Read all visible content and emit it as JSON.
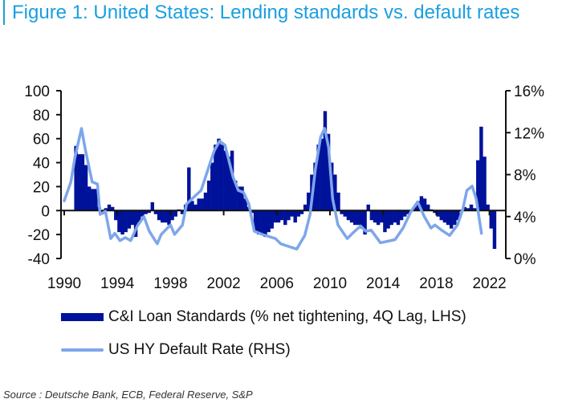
{
  "title": "Figure 1: United States: Lending standards vs. default rates",
  "source": "Source : Deutsche Bank, ECB, Federal Reserve, S&P",
  "colors": {
    "title": "#1a9fe0",
    "bars": "#00129a",
    "line": "#7ea6ea"
  },
  "chart_data": {
    "type": "bar+line",
    "title": "Figure 1: United States: Lending standards vs. default rates",
    "x_ticks": [
      "1990",
      "1994",
      "1998",
      "2002",
      "2006",
      "2010",
      "2014",
      "2018",
      "2022"
    ],
    "x_tick_values": [
      1990,
      1994,
      1998,
      2002,
      2006,
      2010,
      2014,
      2018,
      2022
    ],
    "xlim": [
      1990,
      2023.5
    ],
    "left_axis": {
      "ylim": [
        -40,
        100
      ],
      "ticks": [
        100,
        80,
        60,
        40,
        20,
        0,
        -20,
        -40
      ],
      "tick_labels": [
        "100",
        "80",
        "60",
        "40",
        "20",
        "0",
        "-20",
        "-40"
      ]
    },
    "right_axis": {
      "ylim": [
        0,
        16
      ],
      "ticks": [
        16,
        12,
        8,
        4,
        0
      ],
      "tick_labels": [
        "16%",
        "12%",
        "8%",
        "4%",
        "0%"
      ]
    },
    "legend": [
      "C&I Loan Standards (% net tightening, 4Q Lag, LHS)",
      "US HY Default Rate (RHS)"
    ],
    "legend_position": "bottom",
    "series": [
      {
        "name": "C&I Loan Standards (% net tightening, 4Q Lag, LHS)",
        "type": "bar",
        "axis": "left",
        "x_start": 1990.75,
        "step": 0.25,
        "values": [
          54,
          47,
          47,
          38,
          20,
          18,
          18,
          3,
          -3,
          2,
          5,
          3,
          -8,
          -18,
          -20,
          -18,
          -15,
          -12,
          -22,
          -10,
          -5,
          -3,
          -2,
          7,
          -3,
          -8,
          -10,
          -10,
          -12,
          -8,
          -5,
          1,
          -3,
          5,
          36,
          8,
          5,
          10,
          10,
          15,
          25,
          40,
          55,
          60,
          55,
          50,
          45,
          50,
          25,
          20,
          20,
          10,
          3,
          -2,
          -18,
          -20,
          -20,
          -22,
          -18,
          -15,
          -10,
          -10,
          -8,
          -12,
          -8,
          -5,
          -10,
          -5,
          -3,
          5,
          15,
          30,
          40,
          55,
          60,
          83,
          64,
          40,
          30,
          15,
          -3,
          -5,
          -8,
          -10,
          -12,
          -12,
          -15,
          -20,
          5,
          -8,
          -10,
          -12,
          -10,
          -18,
          -15,
          -12,
          -10,
          -12,
          -8,
          -5,
          -3,
          0,
          3,
          8,
          12,
          10,
          5,
          1,
          -2,
          -5,
          -8,
          -10,
          -12,
          -15,
          -12,
          -8,
          0,
          3,
          2,
          5,
          2,
          42,
          70,
          45,
          5,
          -15,
          -32
        ]
      },
      {
        "name": "US HY Default Rate (RHS)",
        "type": "line",
        "axis": "right",
        "points": [
          [
            1990.0,
            5.5
          ],
          [
            1990.5,
            7.3
          ],
          [
            1990.8,
            9.6
          ],
          [
            1991.3,
            12.4
          ],
          [
            1991.6,
            10.3
          ],
          [
            1992.1,
            7.3
          ],
          [
            1992.5,
            7.1
          ],
          [
            1992.7,
            4.2
          ],
          [
            1993.1,
            4.5
          ],
          [
            1993.5,
            1.9
          ],
          [
            1993.8,
            2.4
          ],
          [
            1994.2,
            1.7
          ],
          [
            1994.6,
            2.0
          ],
          [
            1995.0,
            1.7
          ],
          [
            1995.5,
            3.1
          ],
          [
            1996.0,
            4.0
          ],
          [
            1996.4,
            2.6
          ],
          [
            1997.0,
            1.4
          ],
          [
            1997.3,
            2.3
          ],
          [
            1998.0,
            3.2
          ],
          [
            1998.3,
            2.3
          ],
          [
            1998.9,
            3.2
          ],
          [
            1999.2,
            5.2
          ],
          [
            1999.8,
            5.9
          ],
          [
            2000.3,
            6.5
          ],
          [
            2000.9,
            8.8
          ],
          [
            2001.3,
            10.3
          ],
          [
            2001.7,
            11.2
          ],
          [
            2002.1,
            10.8
          ],
          [
            2002.7,
            7.8
          ],
          [
            2003.1,
            6.5
          ],
          [
            2003.5,
            6.3
          ],
          [
            2003.9,
            5.2
          ],
          [
            2004.3,
            2.6
          ],
          [
            2004.9,
            2.3
          ],
          [
            2005.9,
            1.9
          ],
          [
            2006.3,
            1.4
          ],
          [
            2007.0,
            1.1
          ],
          [
            2007.5,
            0.9
          ],
          [
            2008.1,
            2.2
          ],
          [
            2008.5,
            4.2
          ],
          [
            2008.9,
            8.5
          ],
          [
            2009.3,
            11.6
          ],
          [
            2009.6,
            12.4
          ],
          [
            2009.9,
            10.6
          ],
          [
            2010.2,
            5.7
          ],
          [
            2010.6,
            3.2
          ],
          [
            2011.3,
            1.9
          ],
          [
            2011.7,
            2.4
          ],
          [
            2012.3,
            3.1
          ],
          [
            2012.7,
            2.6
          ],
          [
            2013.1,
            2.7
          ],
          [
            2013.8,
            1.5
          ],
          [
            2014.9,
            1.8
          ],
          [
            2015.5,
            2.9
          ],
          [
            2016.1,
            4.5
          ],
          [
            2016.6,
            5.4
          ],
          [
            2017.1,
            4.0
          ],
          [
            2017.6,
            2.9
          ],
          [
            2017.9,
            3.2
          ],
          [
            2018.4,
            2.7
          ],
          [
            2019.0,
            2.2
          ],
          [
            2019.6,
            3.2
          ],
          [
            2020.0,
            4.7
          ],
          [
            2020.3,
            6.5
          ],
          [
            2020.7,
            6.9
          ],
          [
            2021.0,
            5.7
          ],
          [
            2021.4,
            2.4
          ]
        ]
      }
    ]
  }
}
